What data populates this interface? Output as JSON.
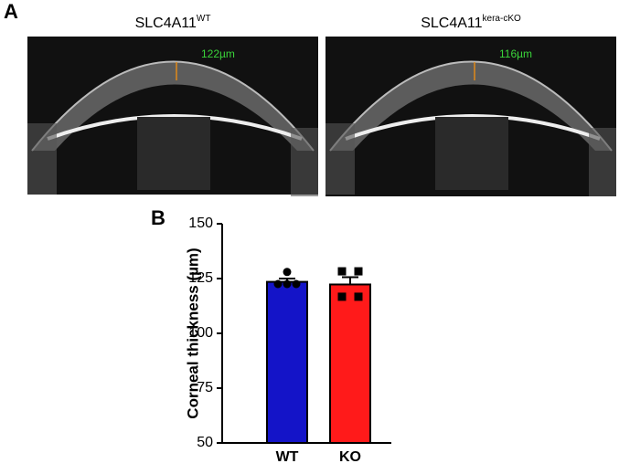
{
  "panel_a": {
    "label": "A",
    "images": [
      {
        "title": "SLC4A11",
        "superscript": "WT",
        "measurement": "122µm"
      },
      {
        "title": "SLC4A11",
        "superscript": "kera-cKO",
        "measurement": "116µm"
      }
    ]
  },
  "chart_data": {
    "type": "bar",
    "panel_label": "B",
    "y_label": "Corneal thickness (µm)",
    "categories": [
      "WT",
      "KO"
    ],
    "values": [
      123.5,
      122.3
    ],
    "errors": [
      1.5,
      3.3
    ],
    "colors": [
      "#1414c8",
      "#ff1a1a"
    ],
    "markers": [
      "circle",
      "square"
    ],
    "points": [
      [
        128,
        122.5,
        122.5,
        122.5
      ],
      [
        128.3,
        128.3,
        116.7,
        116.7
      ]
    ],
    "ylim": [
      50,
      150
    ],
    "yticks": [
      50,
      75,
      100,
      125,
      150
    ]
  }
}
